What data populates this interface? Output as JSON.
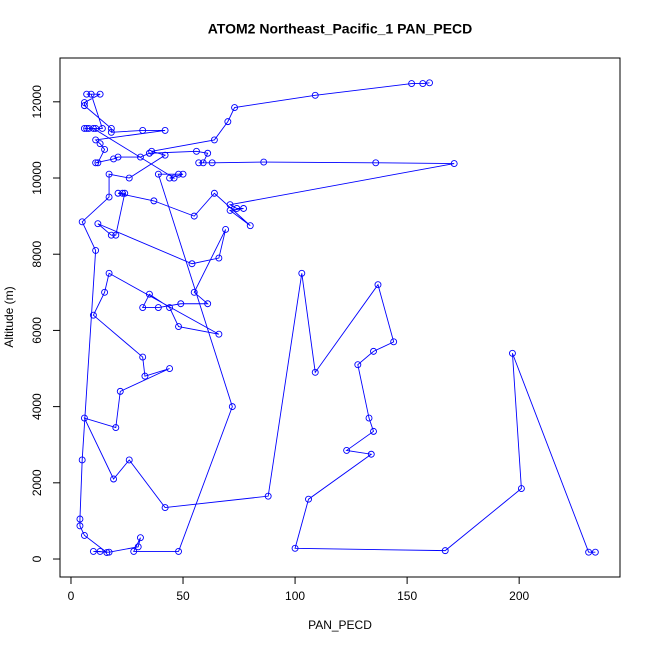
{
  "chart_data": {
    "type": "line",
    "title": "ATOM2 Northeast_Pacific_1 PAN_PECD",
    "xlabel": "PAN_PECD",
    "ylabel": "Altitude (m)",
    "markers": true,
    "grid": false,
    "xlim": [
      -4.9,
      245
    ],
    "ylim": [
      -472,
      13150
    ],
    "xticks": [
      0,
      50,
      100,
      150,
      200
    ],
    "yticks": [
      0,
      2000,
      4000,
      6000,
      8000,
      10000,
      12000
    ],
    "series": [
      {
        "name": "PAN_PECD",
        "color": "#0000ff",
        "x": [
          160,
          157,
          152,
          109,
          73,
          70,
          64,
          36,
          42,
          26,
          17,
          17,
          5,
          11,
          5,
          4,
          4,
          6,
          16,
          13,
          10,
          17,
          30,
          31,
          28,
          48,
          72,
          39,
          48,
          50,
          44,
          46,
          10,
          6,
          7,
          8,
          11,
          14,
          9,
          7,
          13,
          6,
          6,
          18,
          18,
          32,
          42,
          11,
          13,
          15,
          12,
          11,
          19,
          21,
          31,
          35,
          56,
          61,
          59,
          57,
          63,
          86,
          136,
          171,
          71,
          74,
          77,
          71,
          80,
          64,
          55,
          37,
          21,
          23,
          24,
          20,
          18,
          12,
          54,
          66,
          69,
          55,
          61,
          49,
          39,
          32,
          35,
          44,
          48,
          66,
          17,
          15,
          10,
          32,
          33,
          44,
          22,
          20,
          6,
          19,
          26,
          42,
          88,
          103,
          109,
          137,
          144,
          135,
          128,
          133,
          135,
          123,
          134,
          106,
          100,
          167,
          201,
          197,
          231,
          234
        ],
        "y": [
          12500,
          12480,
          12480,
          12170,
          11850,
          11480,
          11000,
          10700,
          10600,
          10000,
          10100,
          9500,
          8850,
          8100,
          2600,
          1050,
          870,
          620,
          170,
          200,
          200,
          180,
          320,
          560,
          200,
          200,
          4000,
          10100,
          10100,
          10100,
          10000,
          10000,
          11300,
          11300,
          11300,
          11300,
          11300,
          11300,
          12200,
          12200,
          12200,
          11980,
          11900,
          11300,
          11200,
          11250,
          11250,
          11000,
          10900,
          10750,
          10400,
          10400,
          10500,
          10550,
          10550,
          10650,
          10700,
          10650,
          10400,
          10400,
          10400,
          10420,
          10400,
          10380,
          9300,
          9200,
          9200,
          9150,
          8750,
          9600,
          9000,
          9400,
          9600,
          9600,
          9600,
          8500,
          8500,
          8800,
          7750,
          7900,
          8650,
          7000,
          6700,
          6700,
          6600,
          6600,
          6950,
          6600,
          6100,
          5900,
          7500,
          7000,
          6400,
          5300,
          4800,
          5000,
          4400,
          3450,
          3700,
          2100,
          2600,
          1350,
          1650,
          7500,
          4900,
          7200,
          5700,
          5450,
          5100,
          3700,
          3350,
          2850,
          2750,
          1570,
          280,
          220,
          1850,
          5400,
          180,
          180
        ]
      }
    ]
  }
}
